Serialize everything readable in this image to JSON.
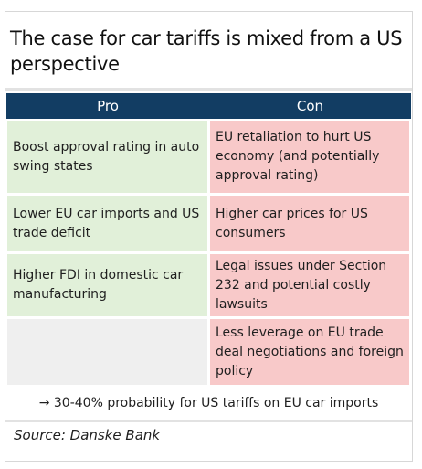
{
  "title": "The case for car tariffs is mixed from a US perspective",
  "headers": {
    "pro": "Pro",
    "con": "Con"
  },
  "rows": [
    {
      "pro": "Boost approval rating in auto swing states",
      "con": "EU retaliation to hurt US economy (and potentially approval rating)"
    },
    {
      "pro": "Lower EU car imports and US trade deficit",
      "con": "Higher car prices for US consumers"
    },
    {
      "pro": "Higher FDI in domestic car manufacturing",
      "con": "Legal issues under Section 232 and potential costly lawsuits"
    },
    {
      "pro": "",
      "con": "Less leverage on EU trade deal negotiations and foreign policy"
    }
  ],
  "conclusion": "→ 30-40% probability for US tariffs on EU car imports",
  "source": "Source: Danske Bank",
  "colors": {
    "header_bg": "#123d63",
    "pro_bg": "#e1f0d9",
    "con_bg": "#f8c9c9",
    "empty_bg": "#efefef"
  }
}
